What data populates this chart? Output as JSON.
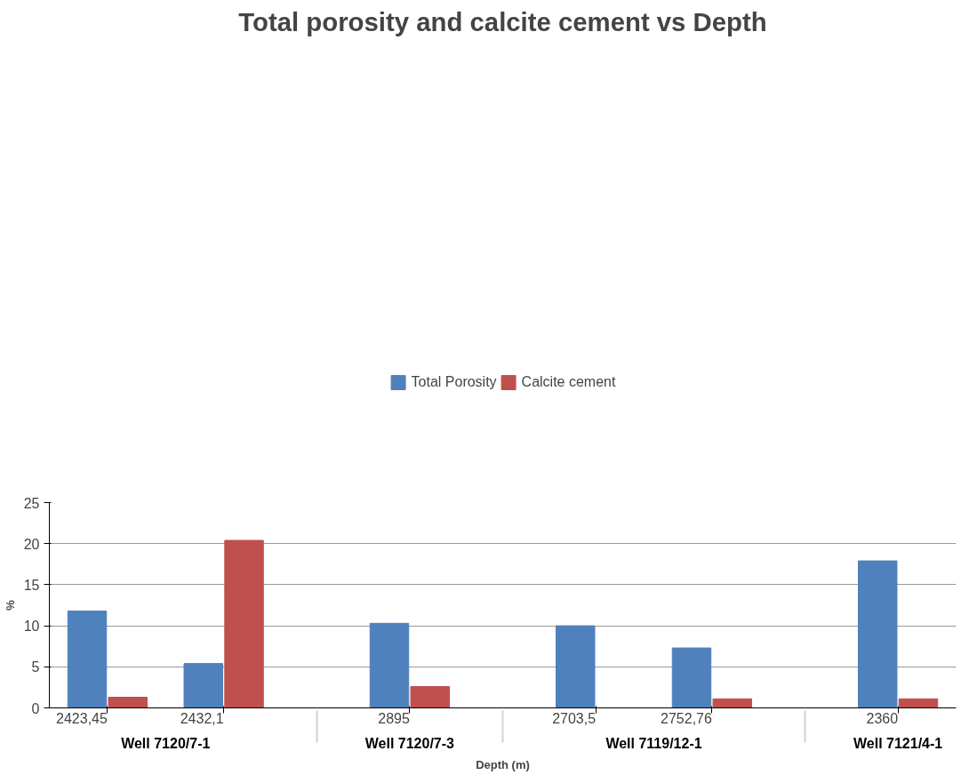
{
  "chart_data": {
    "type": "bar",
    "title": "Total porosity and calcite cement vs Depth",
    "xlabel": "Depth (m)",
    "ylabel": "%",
    "categories": [
      "2423,45",
      "2432,1",
      "2895",
      "2703,5",
      "2752,76",
      "2360"
    ],
    "series": [
      {
        "name": "Total Porosity",
        "color": "#4f81bd",
        "values": [
          11.8,
          5.4,
          10.3,
          10.0,
          7.3,
          17.9
        ]
      },
      {
        "name": "Calcite cement",
        "color": "#c0504d",
        "values": [
          1.3,
          20.4,
          2.6,
          0,
          1.1,
          1.1
        ]
      }
    ],
    "annotations": [
      "Well 7120/7-1",
      "Well 7120/7-3",
      "Well 7119/12-1",
      "Well 7121/4-1"
    ],
    "ylim": [
      0,
      25
    ],
    "yticks": [
      0,
      5,
      10,
      15,
      20,
      25
    ],
    "grid": "y",
    "legend": "top"
  }
}
